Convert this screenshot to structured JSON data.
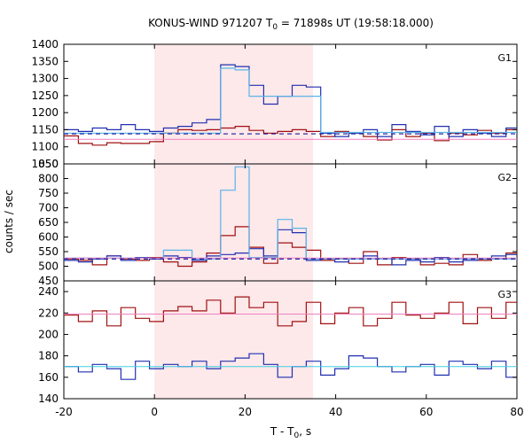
{
  "chart_data": {
    "type": "line",
    "title_main": "KONUS-WIND 971207 T",
    "title_sub": "0",
    "title_rest": " = 71898s UT (19:58:18.000)",
    "xlabel_main": "T - T",
    "xlabel_sub": "0",
    "xlabel_rest": ", s",
    "ylabel": "counts / sec",
    "xlim": [
      -20,
      80
    ],
    "x_ticks": [
      -20,
      0,
      20,
      40,
      60,
      80
    ],
    "highlight_range": [
      0,
      35
    ],
    "colors": {
      "highlight": "#fde8ea",
      "dark_red": "#a01010",
      "blue": "#2030b0",
      "light_blue": "#5ab4e8",
      "pink": "#f080c0",
      "navy": "#1a1aa0",
      "cyan": "#40d0e0"
    },
    "panels": [
      {
        "name": "G1",
        "ylim": [
          1050,
          1400
        ],
        "y_ticks": [
          1050,
          1100,
          1150,
          1200,
          1250,
          1300,
          1350,
          1400
        ],
        "x": [
          -20,
          -16.8,
          -13.7,
          -10.5,
          -7.4,
          -4.2,
          -1.1,
          2,
          5.2,
          8.3,
          11.5,
          14.6,
          17.8,
          20.9,
          24.1,
          27.2,
          30.4,
          33.5,
          36.7,
          39.8,
          42.9,
          46.1,
          49.2,
          52.4,
          55.5,
          58.7,
          61.8,
          65,
          68.1,
          71.3,
          74.4,
          77.6,
          80
        ],
        "series": [
          {
            "name": "",
            "style": "step",
            "color": "dark_red",
            "values": [
              1132,
              1110,
              1105,
              1112,
              1110,
              1110,
              1115,
              1140,
              1150,
              1148,
              1150,
              1155,
              1160,
              1148,
              1140,
              1145,
              1150,
              1145,
              1130,
              1145,
              1140,
              1130,
              1120,
              1150,
              1130,
              1140,
              1118,
              1140,
              1135,
              1148,
              1140,
              1150
            ]
          },
          {
            "name": "",
            "style": "step",
            "color": "blue",
            "values": [
              1150,
              1145,
              1155,
              1150,
              1165,
              1150,
              1145,
              1155,
              1160,
              1170,
              1180,
              1340,
              1335,
              1280,
              1225,
              1248,
              1280,
              1275,
              1140,
              1130,
              1140,
              1150,
              1130,
              1165,
              1145,
              1135,
              1160,
              1130,
              1150,
              1140,
              1130,
              1155
            ]
          },
          {
            "name": "",
            "style": "step",
            "color": "light_blue",
            "values": [
              1140,
              1140,
              1140,
              1140,
              1140,
              1140,
              1140,
              1140,
              1140,
              1140,
              1140,
              1330,
              1325,
              1248,
              1248,
              1248,
              1248,
              1248,
              1142,
              1142,
              1142,
              1142,
              1142,
              1142,
              1142,
              1142,
              1142,
              1142,
              1142,
              1142,
              1142,
              1142
            ]
          },
          {
            "name": "",
            "style": "hline",
            "color": "pink",
            "value": 1122
          },
          {
            "name": "",
            "style": "dashed",
            "color": "navy",
            "value": 1138
          }
        ]
      },
      {
        "name": "G2",
        "ylim": [
          450,
          850
        ],
        "y_ticks": [
          450,
          500,
          550,
          600,
          650,
          700,
          750,
          800,
          850
        ],
        "x": [
          -20,
          -16.8,
          -13.7,
          -10.5,
          -7.4,
          -4.2,
          -1.1,
          2,
          5.2,
          8.3,
          11.5,
          14.6,
          17.8,
          20.9,
          24.1,
          27.2,
          30.4,
          33.5,
          36.7,
          39.8,
          42.9,
          46.1,
          49.2,
          52.4,
          55.5,
          58.7,
          61.8,
          65,
          68.1,
          71.3,
          74.4,
          77.6,
          80
        ],
        "series": [
          {
            "name": "",
            "style": "step",
            "color": "dark_red",
            "values": [
              525,
              520,
              505,
              535,
              525,
              520,
              530,
              515,
              500,
              515,
              545,
              605,
              635,
              565,
              510,
              580,
              565,
              555,
              520,
              525,
              510,
              550,
              505,
              530,
              525,
              505,
              510,
              505,
              540,
              520,
              525,
              545
            ]
          },
          {
            "name": "",
            "style": "step",
            "color": "blue",
            "values": [
              520,
              515,
              525,
              535,
              520,
              530,
              525,
              535,
              530,
              520,
              535,
              540,
              545,
              560,
              535,
              625,
              615,
              520,
              525,
              515,
              525,
              535,
              525,
              505,
              520,
              515,
              530,
              515,
              520,
              525,
              535,
              540
            ]
          },
          {
            "name": "",
            "style": "step",
            "color": "light_blue",
            "values": [
              528,
              528,
              528,
              528,
              528,
              528,
              528,
              555,
              555,
              525,
              525,
              760,
              840,
              530,
              530,
              660,
              630,
              525,
              525,
              525,
              525,
              525,
              525,
              525,
              525,
              525,
              525,
              525,
              525,
              525,
              525,
              525
            ]
          },
          {
            "name": "",
            "style": "hline",
            "color": "pink",
            "value": 528
          },
          {
            "name": "",
            "style": "dashed",
            "color": "navy",
            "value": 525
          }
        ]
      },
      {
        "name": "G3",
        "ylim": [
          140,
          250
        ],
        "y_ticks": [
          140,
          160,
          180,
          200,
          220,
          240
        ],
        "x": [
          -20,
          -16.8,
          -13.7,
          -10.5,
          -7.4,
          -4.2,
          -1.1,
          2,
          5.2,
          8.3,
          11.5,
          14.6,
          17.8,
          20.9,
          24.1,
          27.2,
          30.4,
          33.5,
          36.7,
          39.8,
          42.9,
          46.1,
          49.2,
          52.4,
          55.5,
          58.7,
          61.8,
          65,
          68.1,
          71.3,
          74.4,
          77.6,
          80
        ],
        "series": [
          {
            "name": "",
            "style": "step",
            "color": "dark_red",
            "values": [
              218,
              212,
              222,
              208,
              225,
              215,
              212,
              222,
              226,
              222,
              232,
              220,
              235,
              225,
              230,
              208,
              212,
              230,
              210,
              220,
              225,
              208,
              215,
              230,
              218,
              215,
              220,
              230,
              210,
              225,
              215,
              230
            ]
          },
          {
            "name": "",
            "style": "step",
            "color": "blue",
            "values": [
              170,
              165,
              172,
              168,
              158,
              175,
              168,
              172,
              170,
              175,
              168,
              175,
              178,
              182,
              172,
              160,
              170,
              175,
              162,
              168,
              180,
              178,
              170,
              165,
              170,
              172,
              162,
              175,
              172,
              168,
              175,
              160
            ]
          },
          {
            "name": "",
            "style": "hline",
            "color": "pink",
            "value": 219
          },
          {
            "name": "",
            "style": "hline",
            "color": "cyan",
            "value": 170
          }
        ]
      }
    ]
  }
}
